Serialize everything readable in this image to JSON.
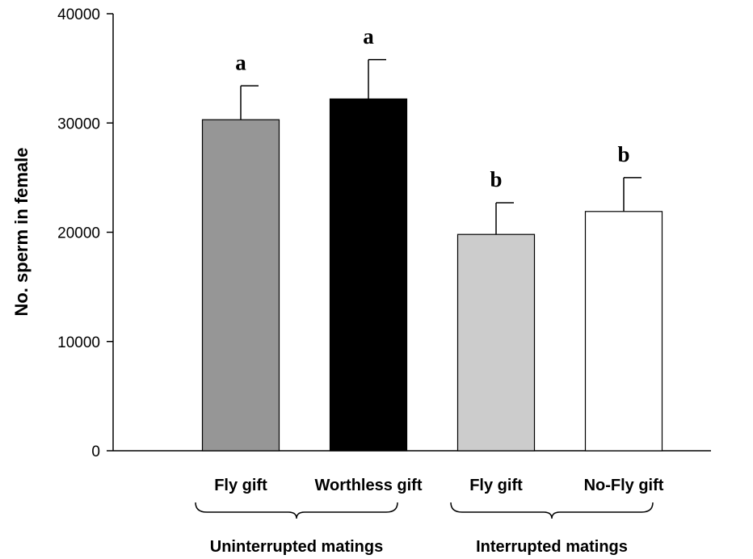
{
  "chart_data": {
    "type": "bar",
    "title": "",
    "xlabel": "",
    "ylabel": "No. sperm in female",
    "ylim": [
      0,
      40000
    ],
    "yticks": [
      0,
      10000,
      20000,
      30000,
      40000
    ],
    "grid": false,
    "legend": "none",
    "categories": [
      "Fly gift",
      "Worthless gift",
      "Fly gift",
      "No-Fly gift"
    ],
    "values": [
      30300,
      32200,
      19800,
      21900
    ],
    "error_upper": [
      3100,
      3600,
      2900,
      3100
    ],
    "significance_letters": [
      "a",
      "a",
      "b",
      "b"
    ],
    "bar_colors": [
      "#969696",
      "#000000",
      "#cccccc",
      "#ffffff"
    ],
    "groups": [
      {
        "label": "Uninterrupted matings",
        "category_indices": [
          0,
          1
        ]
      },
      {
        "label": "Interrupted matings",
        "category_indices": [
          2,
          3
        ]
      }
    ]
  }
}
